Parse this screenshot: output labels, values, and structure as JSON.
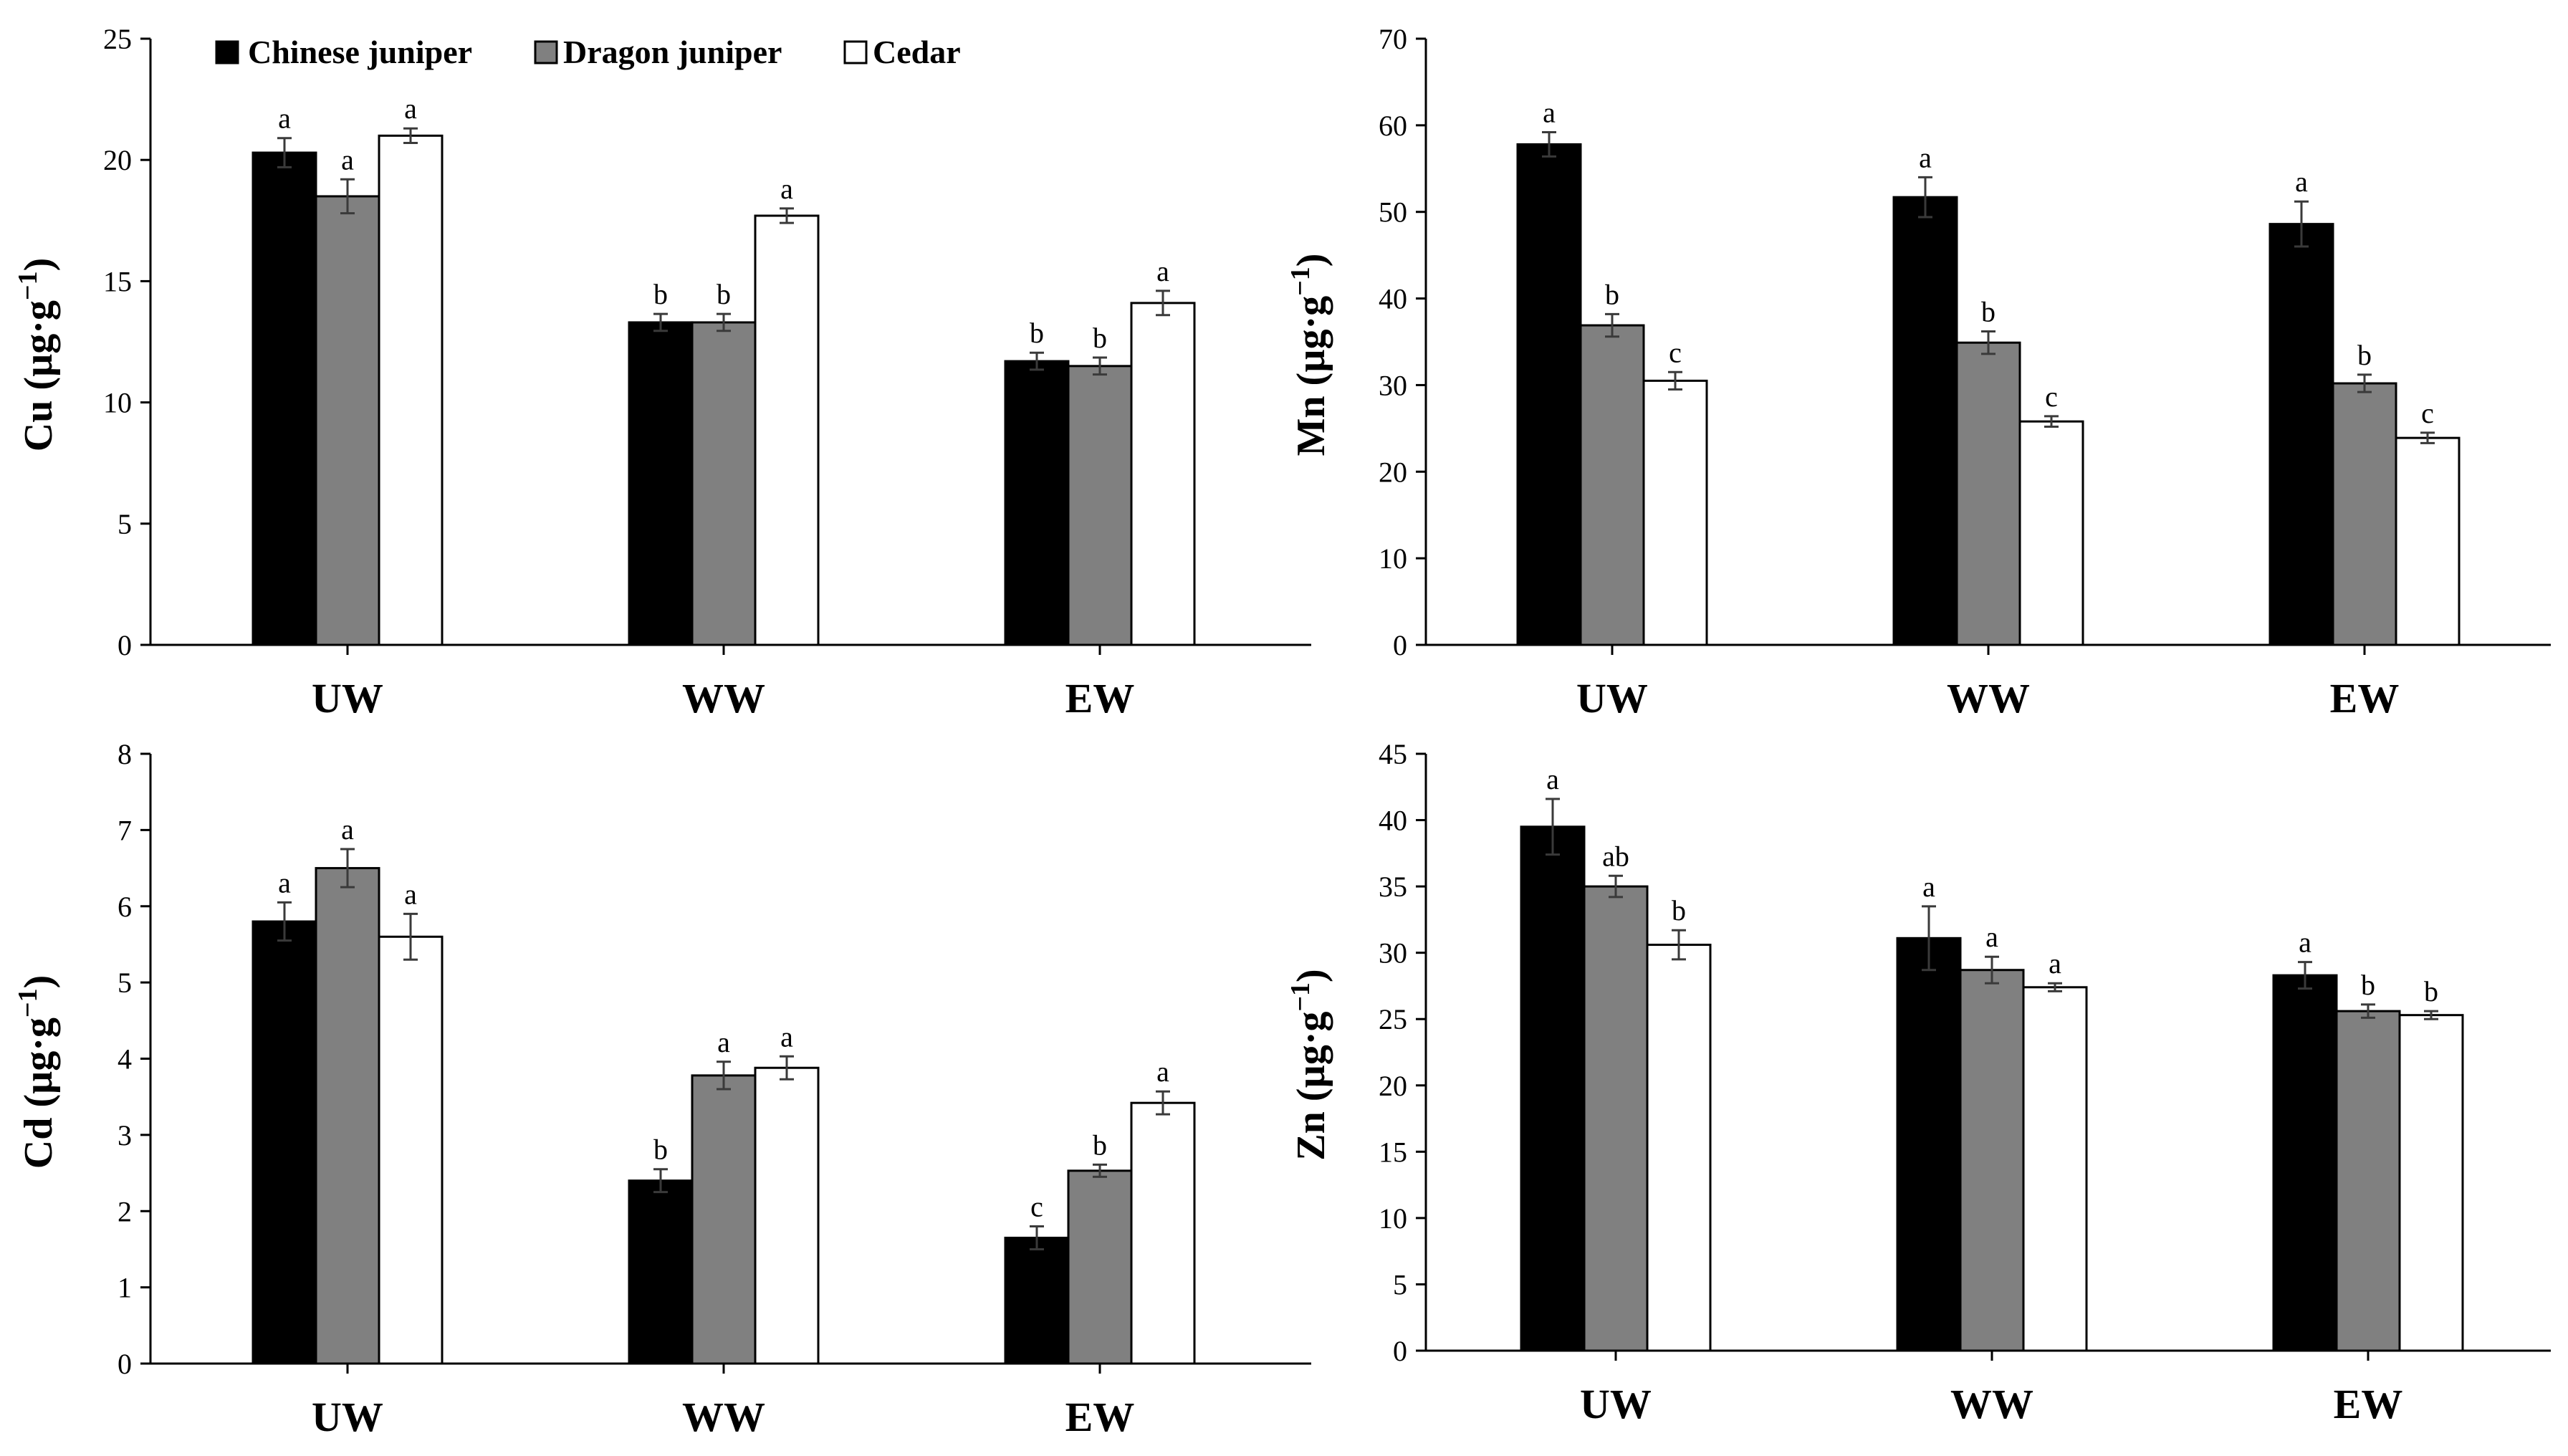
{
  "legend": {
    "series": [
      {
        "name": "Chinese juniper",
        "color": "#000000"
      },
      {
        "name": "Dragon juniper",
        "color": "#808080"
      },
      {
        "name": "Cedar",
        "color": "#ffffff"
      }
    ]
  },
  "chart_data": [
    {
      "id": "cu",
      "type": "bar",
      "ylabel": "Cu (µg·g",
      "ylabel_sup": "−1",
      "ylabel_end": ")",
      "categories": [
        "UW",
        "WW",
        "EW"
      ],
      "ylim": [
        0,
        25
      ],
      "yticks": [
        0,
        5,
        10,
        15,
        20,
        25
      ],
      "series": [
        {
          "name": "Chinese juniper",
          "values": [
            20.3,
            13.3,
            11.7
          ],
          "errors": [
            0.6,
            0.35,
            0.35
          ],
          "letters": [
            "a",
            "b",
            "b"
          ]
        },
        {
          "name": "Dragon juniper",
          "values": [
            18.5,
            13.3,
            11.5
          ],
          "errors": [
            0.7,
            0.35,
            0.35
          ],
          "letters": [
            "a",
            "b",
            "b"
          ]
        },
        {
          "name": "Cedar",
          "values": [
            21.0,
            17.7,
            14.1
          ],
          "errors": [
            0.3,
            0.3,
            0.5
          ],
          "letters": [
            "a",
            "a",
            "a"
          ]
        }
      ]
    },
    {
      "id": "mn",
      "type": "bar",
      "ylabel": "Mn (µg·g",
      "ylabel_sup": "−1",
      "ylabel_end": ")",
      "categories": [
        "UW",
        "WW",
        "EW"
      ],
      "ylim": [
        0,
        70
      ],
      "yticks": [
        0,
        10,
        20,
        30,
        40,
        50,
        60,
        70
      ],
      "series": [
        {
          "name": "Chinese juniper",
          "values": [
            57.8,
            51.7,
            48.6
          ],
          "errors": [
            1.4,
            2.3,
            2.6
          ],
          "letters": [
            "a",
            "a",
            "a"
          ]
        },
        {
          "name": "Dragon juniper",
          "values": [
            36.9,
            34.9,
            30.2
          ],
          "errors": [
            1.3,
            1.3,
            1.0
          ],
          "letters": [
            "b",
            "b",
            "b"
          ]
        },
        {
          "name": "Cedar",
          "values": [
            30.5,
            25.8,
            23.9
          ],
          "errors": [
            1.0,
            0.6,
            0.6
          ],
          "letters": [
            "c",
            "c",
            "c"
          ]
        }
      ]
    },
    {
      "id": "cd",
      "type": "bar",
      "ylabel": "Cd (µg·g",
      "ylabel_sup": "−1",
      "ylabel_end": ")",
      "categories": [
        "UW",
        "WW",
        "EW"
      ],
      "ylim": [
        0,
        8
      ],
      "yticks": [
        0,
        1,
        2,
        3,
        4,
        5,
        6,
        7,
        8
      ],
      "series": [
        {
          "name": "Chinese juniper",
          "values": [
            5.8,
            2.4,
            1.65
          ],
          "errors": [
            0.25,
            0.15,
            0.15
          ],
          "letters": [
            "a",
            "b",
            "c"
          ]
        },
        {
          "name": "Dragon juniper",
          "values": [
            6.5,
            3.78,
            2.53
          ],
          "errors": [
            0.25,
            0.18,
            0.08
          ],
          "letters": [
            "a",
            "a",
            "b"
          ]
        },
        {
          "name": "Cedar",
          "values": [
            5.6,
            3.88,
            3.42
          ],
          "errors": [
            0.3,
            0.15,
            0.15
          ],
          "letters": [
            "a",
            "a",
            "a"
          ]
        }
      ]
    },
    {
      "id": "zn",
      "type": "bar",
      "ylabel": "Zn (µg·g",
      "ylabel_sup": "−1",
      "ylabel_end": ")",
      "categories": [
        "UW",
        "WW",
        "EW"
      ],
      "ylim": [
        0,
        45
      ],
      "yticks": [
        0,
        5,
        10,
        15,
        20,
        25,
        30,
        35,
        40,
        45
      ],
      "series": [
        {
          "name": "Chinese juniper",
          "values": [
            39.5,
            31.1,
            28.3
          ],
          "errors": [
            2.1,
            2.4,
            1.0
          ],
          "letters": [
            "a",
            "a",
            "a"
          ]
        },
        {
          "name": "Dragon juniper",
          "values": [
            35.0,
            28.7,
            25.6
          ],
          "errors": [
            0.8,
            1.0,
            0.5
          ],
          "letters": [
            "ab",
            "a",
            "b"
          ]
        },
        {
          "name": "Cedar",
          "values": [
            30.6,
            27.4,
            25.3
          ],
          "errors": [
            1.1,
            0.3,
            0.3
          ],
          "letters": [
            "b",
            "a",
            "b"
          ]
        }
      ]
    }
  ]
}
